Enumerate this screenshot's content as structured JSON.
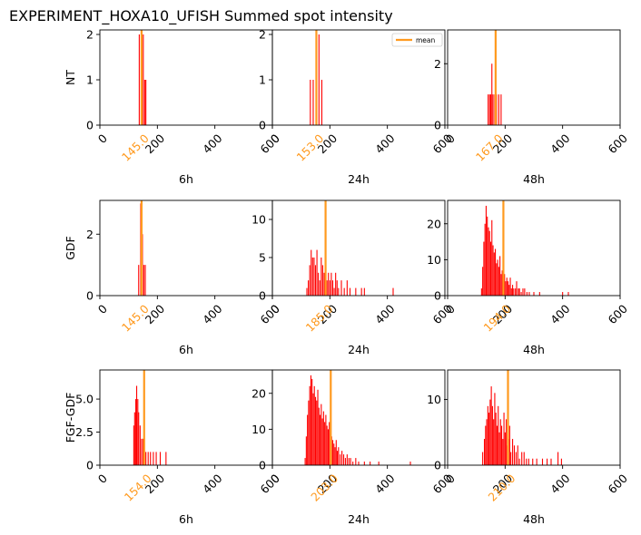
{
  "figure": {
    "title": "EXPERIMENT_HOXA10_UFISH  Summed spot intensity",
    "bar_color": "#ff0000",
    "mean_color": "#ff9a1f",
    "legend_label": "mean"
  },
  "chart_data": [
    {
      "type": "bar",
      "row": "NT",
      "col": "6h",
      "xlabel": "6h",
      "ylabel": "NT",
      "xlim": [
        0,
        600
      ],
      "ylim": [
        0,
        2.1
      ],
      "yticks": [
        "0",
        "1",
        "2"
      ],
      "xticks": [
        "0",
        "200",
        "400",
        "600"
      ],
      "mean": 145.0,
      "mean_label": "145.0",
      "bars": [
        [
          137,
          2
        ],
        [
          145,
          1
        ],
        [
          151,
          2
        ],
        [
          156,
          1
        ],
        [
          160,
          1
        ]
      ]
    },
    {
      "type": "bar",
      "row": "NT",
      "col": "24h",
      "xlabel": "24h",
      "ylabel": "",
      "xlim": [
        0,
        600
      ],
      "ylim": [
        0,
        2.1
      ],
      "yticks": [
        "0",
        "1",
        "2"
      ],
      "xticks": [
        "0",
        "200",
        "400",
        "600"
      ],
      "mean": 153.0,
      "mean_label": "153.0",
      "legend": "top-right",
      "bars": [
        [
          132,
          1
        ],
        [
          142,
          1
        ],
        [
          152,
          2
        ],
        [
          162,
          2
        ],
        [
          172,
          1
        ]
      ]
    },
    {
      "type": "bar",
      "row": "NT",
      "col": "48h",
      "xlabel": "48h",
      "ylabel": "",
      "xlim": [
        0,
        600
      ],
      "ylim": [
        0,
        3.1
      ],
      "yticks": [
        "0",
        "2"
      ],
      "xticks": [
        "0",
        "200",
        "400",
        "600"
      ],
      "mean": 167.0,
      "mean_label": "167.0",
      "bars": [
        [
          141,
          1
        ],
        [
          146,
          1
        ],
        [
          150,
          1
        ],
        [
          154,
          2
        ],
        [
          158,
          1
        ],
        [
          164,
          1
        ],
        [
          170,
          1
        ],
        [
          178,
          1
        ],
        [
          186,
          1
        ]
      ]
    },
    {
      "type": "bar",
      "row": "GDF",
      "col": "6h",
      "xlabel": "6h",
      "ylabel": "GDF",
      "xlim": [
        0,
        600
      ],
      "ylim": [
        0,
        3.1
      ],
      "yticks": [
        "0",
        "2"
      ],
      "xticks": [
        "0",
        "200",
        "400",
        "600"
      ],
      "mean": 145.0,
      "mean_label": "145.0",
      "bars": [
        [
          135,
          1
        ],
        [
          142,
          3
        ],
        [
          148,
          2
        ],
        [
          153,
          1
        ],
        [
          158,
          1
        ]
      ]
    },
    {
      "type": "bar",
      "row": "GDF",
      "col": "24h",
      "xlabel": "24h",
      "ylabel": "",
      "xlim": [
        0,
        600
      ],
      "ylim": [
        0,
        12.5
      ],
      "yticks": [
        "0",
        "5",
        "10"
      ],
      "xticks": [
        "0",
        "200",
        "400",
        "600"
      ],
      "mean": 185.0,
      "mean_label": "185.0",
      "bars": [
        [
          120,
          1
        ],
        [
          125,
          2
        ],
        [
          130,
          4
        ],
        [
          135,
          6
        ],
        [
          140,
          5
        ],
        [
          145,
          5
        ],
        [
          150,
          4
        ],
        [
          155,
          6
        ],
        [
          160,
          3
        ],
        [
          165,
          2
        ],
        [
          170,
          5
        ],
        [
          175,
          4
        ],
        [
          180,
          3
        ],
        [
          185,
          4
        ],
        [
          190,
          2
        ],
        [
          195,
          3
        ],
        [
          200,
          2
        ],
        [
          205,
          3
        ],
        [
          210,
          2
        ],
        [
          215,
          1
        ],
        [
          220,
          3
        ],
        [
          225,
          2
        ],
        [
          230,
          1
        ],
        [
          240,
          2
        ],
        [
          250,
          1
        ],
        [
          260,
          2
        ],
        [
          270,
          1
        ],
        [
          290,
          1
        ],
        [
          310,
          1
        ],
        [
          320,
          1
        ],
        [
          420,
          1
        ]
      ]
    },
    {
      "type": "bar",
      "row": "GDF",
      "col": "48h",
      "xlabel": "48h",
      "ylabel": "",
      "xlim": [
        0,
        600
      ],
      "ylim": [
        0,
        26.5
      ],
      "yticks": [
        "0",
        "10",
        "20"
      ],
      "xticks": [
        "0",
        "200",
        "400",
        "600"
      ],
      "mean": 194.0,
      "mean_label": "194.0",
      "bars": [
        [
          118,
          2
        ],
        [
          122,
          8
        ],
        [
          126,
          15
        ],
        [
          130,
          20
        ],
        [
          134,
          25
        ],
        [
          138,
          22
        ],
        [
          142,
          19
        ],
        [
          146,
          18
        ],
        [
          150,
          15
        ],
        [
          154,
          21
        ],
        [
          158,
          14
        ],
        [
          162,
          12
        ],
        [
          166,
          13
        ],
        [
          170,
          9
        ],
        [
          174,
          10
        ],
        [
          178,
          8
        ],
        [
          182,
          11
        ],
        [
          186,
          6
        ],
        [
          190,
          7
        ],
        [
          194,
          5
        ],
        [
          198,
          6
        ],
        [
          202,
          4
        ],
        [
          206,
          5
        ],
        [
          210,
          4
        ],
        [
          214,
          3
        ],
        [
          218,
          5
        ],
        [
          222,
          2
        ],
        [
          226,
          3
        ],
        [
          230,
          2
        ],
        [
          236,
          2
        ],
        [
          240,
          4
        ],
        [
          246,
          2
        ],
        [
          250,
          2
        ],
        [
          256,
          1
        ],
        [
          262,
          2
        ],
        [
          268,
          2
        ],
        [
          276,
          1
        ],
        [
          284,
          1
        ],
        [
          300,
          1
        ],
        [
          320,
          1
        ],
        [
          400,
          1
        ],
        [
          420,
          1
        ]
      ]
    },
    {
      "type": "bar",
      "row": "FGF-GDF",
      "col": "6h",
      "xlabel": "6h",
      "ylabel": "FGF-GDF",
      "xlim": [
        0,
        600
      ],
      "ylim": [
        0,
        7.2
      ],
      "yticks": [
        "0",
        "2.5",
        "5.0"
      ],
      "xticks": [
        "0",
        "200",
        "400",
        "600"
      ],
      "mean": 154.0,
      "mean_label": "154.0",
      "bars": [
        [
          118,
          3
        ],
        [
          121,
          4
        ],
        [
          125,
          5
        ],
        [
          128,
          6
        ],
        [
          132,
          5
        ],
        [
          135,
          4
        ],
        [
          140,
          3
        ],
        [
          145,
          2
        ],
        [
          150,
          2
        ],
        [
          155,
          2
        ],
        [
          160,
          1
        ],
        [
          168,
          1
        ],
        [
          176,
          1
        ],
        [
          186,
          1
        ],
        [
          196,
          1
        ],
        [
          210,
          1
        ],
        [
          230,
          1
        ]
      ]
    },
    {
      "type": "bar",
      "row": "FGF-GDF",
      "col": "24h",
      "xlabel": "24h",
      "ylabel": "",
      "xlim": [
        0,
        600
      ],
      "ylim": [
        0,
        26.5
      ],
      "yticks": [
        "0",
        "10",
        "20"
      ],
      "xticks": [
        "0",
        "200",
        "400",
        "600"
      ],
      "mean": 203.0,
      "mean_label": "203.0",
      "bars": [
        [
          114,
          2
        ],
        [
          118,
          8
        ],
        [
          122,
          14
        ],
        [
          126,
          18
        ],
        [
          130,
          22
        ],
        [
          134,
          25
        ],
        [
          138,
          24
        ],
        [
          142,
          20
        ],
        [
          146,
          22
        ],
        [
          150,
          19
        ],
        [
          154,
          18
        ],
        [
          158,
          21
        ],
        [
          162,
          16
        ],
        [
          166,
          14
        ],
        [
          170,
          17
        ],
        [
          174,
          13
        ],
        [
          178,
          15
        ],
        [
          182,
          12
        ],
        [
          186,
          14
        ],
        [
          190,
          11
        ],
        [
          194,
          10
        ],
        [
          198,
          12
        ],
        [
          202,
          9
        ],
        [
          206,
          8
        ],
        [
          210,
          7
        ],
        [
          214,
          6
        ],
        [
          218,
          5
        ],
        [
          222,
          7
        ],
        [
          226,
          4
        ],
        [
          230,
          5
        ],
        [
          236,
          3
        ],
        [
          242,
          4
        ],
        [
          248,
          3
        ],
        [
          254,
          2
        ],
        [
          260,
          3
        ],
        [
          266,
          2
        ],
        [
          272,
          2
        ],
        [
          280,
          1
        ],
        [
          290,
          2
        ],
        [
          300,
          1
        ],
        [
          320,
          1
        ],
        [
          340,
          1
        ],
        [
          370,
          1
        ],
        [
          480,
          1
        ]
      ]
    },
    {
      "type": "bar",
      "row": "FGF-GDF",
      "col": "48h",
      "xlabel": "48h",
      "ylabel": "",
      "xlim": [
        0,
        600
      ],
      "ylim": [
        0,
        14.5
      ],
      "yticks": [
        "0",
        "10"
      ],
      "xticks": [
        "0",
        "200",
        "400",
        "600"
      ],
      "mean": 210.0,
      "mean_label": "210.0",
      "bars": [
        [
          122,
          2
        ],
        [
          128,
          4
        ],
        [
          132,
          6
        ],
        [
          136,
          7
        ],
        [
          140,
          9
        ],
        [
          144,
          8
        ],
        [
          148,
          10
        ],
        [
          152,
          12
        ],
        [
          156,
          9
        ],
        [
          160,
          7
        ],
        [
          164,
          11
        ],
        [
          168,
          8
        ],
        [
          172,
          6
        ],
        [
          176,
          9
        ],
        [
          180,
          5
        ],
        [
          184,
          7
        ],
        [
          188,
          6
        ],
        [
          192,
          4
        ],
        [
          196,
          8
        ],
        [
          200,
          5
        ],
        [
          204,
          7
        ],
        [
          208,
          3
        ],
        [
          212,
          4
        ],
        [
          216,
          6
        ],
        [
          220,
          2
        ],
        [
          226,
          4
        ],
        [
          232,
          3
        ],
        [
          238,
          2
        ],
        [
          244,
          3
        ],
        [
          250,
          1
        ],
        [
          258,
          2
        ],
        [
          266,
          2
        ],
        [
          274,
          1
        ],
        [
          282,
          1
        ],
        [
          296,
          1
        ],
        [
          310,
          1
        ],
        [
          330,
          1
        ],
        [
          346,
          1
        ],
        [
          360,
          1
        ],
        [
          384,
          2
        ],
        [
          396,
          1
        ]
      ]
    }
  ]
}
